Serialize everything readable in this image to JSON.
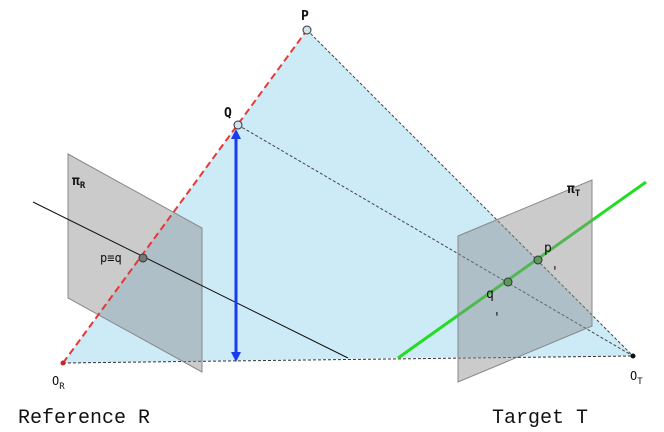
{
  "labels": {
    "P": "P",
    "Q": "Q",
    "pi_R": "π",
    "pi_R_sub": "R",
    "pi_T": "π",
    "pi_T_sub": "T",
    "p_eq_q": "p≡q",
    "p_prime": "p",
    "p_prime_mark": "'",
    "q_prime": "q",
    "q_prime_mark": "'",
    "O_R": "O",
    "O_R_sub": "R",
    "O_T": "O",
    "O_T_sub": "T",
    "reference_caption": "Reference R",
    "target_caption": "Target T"
  },
  "colors": {
    "projection_fill": "#cdeaf7",
    "image_plane": "#9e9e9e",
    "viewing_ray_reference": "#e53935",
    "depth_arrow": "#1a3cf0",
    "epipolar_line": "#22dd22"
  }
}
